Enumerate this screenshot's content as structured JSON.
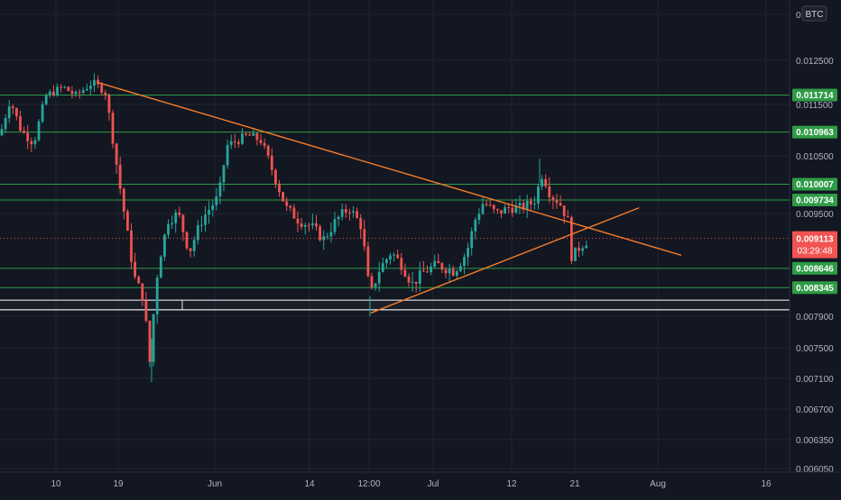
{
  "chart_data": {
    "type": "candlestick",
    "currency_badge": "BTC",
    "y_axis_ticks": [
      "0.0",
      "0.012500",
      "0.011500",
      "0.010500",
      "0.009500",
      "0.007900",
      "0.007500",
      "0.007100",
      "0.006700",
      "0.006350",
      "0.006050"
    ],
    "x_axis_ticks": [
      "10",
      "19",
      "Jun",
      "14",
      "12:00",
      "Jul",
      "12",
      "21",
      "Aug",
      "16"
    ],
    "price_levels": [
      {
        "label": "0.011714",
        "value": 0.011714,
        "style": "green"
      },
      {
        "label": "0.010963",
        "value": 0.010963,
        "style": "green"
      },
      {
        "label": "0.010007",
        "value": 0.010007,
        "style": "green"
      },
      {
        "label": "0.009734",
        "value": 0.009734,
        "style": "green"
      },
      {
        "label": "0.008646",
        "value": 0.008646,
        "style": "green"
      },
      {
        "label": "0.008345",
        "value": 0.008345,
        "style": "green"
      }
    ],
    "current_price": {
      "label": "0.009113",
      "value": 0.009113,
      "countdown": "03:29:48"
    },
    "support_band": [
      0.008,
      0.00815
    ],
    "trendlines": [
      {
        "name": "descending",
        "from": [
          0.116,
          0.012
        ],
        "to": [
          0.81,
          0.00885
        ]
      },
      {
        "name": "ascending",
        "from": [
          0.441,
          0.00795
        ],
        "to": [
          0.76,
          0.0096
        ]
      }
    ],
    "candles_anchors": [
      [
        0.0,
        0.0109
      ],
      [
        0.012,
        0.0116
      ],
      [
        0.025,
        0.011
      ],
      [
        0.04,
        0.01075
      ],
      [
        0.055,
        0.0117
      ],
      [
        0.075,
        0.0119
      ],
      [
        0.09,
        0.0117
      ],
      [
        0.11,
        0.012
      ],
      [
        0.125,
        0.0118
      ],
      [
        0.14,
        0.0102
      ],
      [
        0.15,
        0.0093
      ],
      [
        0.16,
        0.0085
      ],
      [
        0.17,
        0.0082
      ],
      [
        0.178,
        0.0073
      ],
      [
        0.188,
        0.0087
      ],
      [
        0.2,
        0.0094
      ],
      [
        0.212,
        0.0095
      ],
      [
        0.225,
        0.0089
      ],
      [
        0.24,
        0.0094
      ],
      [
        0.26,
        0.0098
      ],
      [
        0.27,
        0.0107
      ],
      [
        0.282,
        0.0108
      ],
      [
        0.295,
        0.0109
      ],
      [
        0.31,
        0.0108
      ],
      [
        0.325,
        0.0102
      ],
      [
        0.34,
        0.0096
      ],
      [
        0.355,
        0.0094
      ],
      [
        0.37,
        0.0093
      ],
      [
        0.385,
        0.0091
      ],
      [
        0.4,
        0.0094
      ],
      [
        0.415,
        0.0096
      ],
      [
        0.43,
        0.0093
      ],
      [
        0.44,
        0.0082
      ],
      [
        0.45,
        0.0086
      ],
      [
        0.465,
        0.0089
      ],
      [
        0.478,
        0.0087
      ],
      [
        0.49,
        0.0084
      ],
      [
        0.505,
        0.0086
      ],
      [
        0.52,
        0.0087
      ],
      [
        0.54,
        0.0086
      ],
      [
        0.555,
        0.0089
      ],
      [
        0.565,
        0.0094
      ],
      [
        0.575,
        0.0097
      ],
      [
        0.59,
        0.0095
      ],
      [
        0.605,
        0.0096
      ],
      [
        0.62,
        0.0096
      ],
      [
        0.635,
        0.0097
      ],
      [
        0.645,
        0.0102
      ],
      [
        0.655,
        0.0098
      ],
      [
        0.665,
        0.0097
      ],
      [
        0.675,
        0.0094
      ],
      [
        0.68,
        0.0088
      ],
      [
        0.69,
        0.009
      ],
      [
        0.7,
        0.0091
      ]
    ]
  }
}
